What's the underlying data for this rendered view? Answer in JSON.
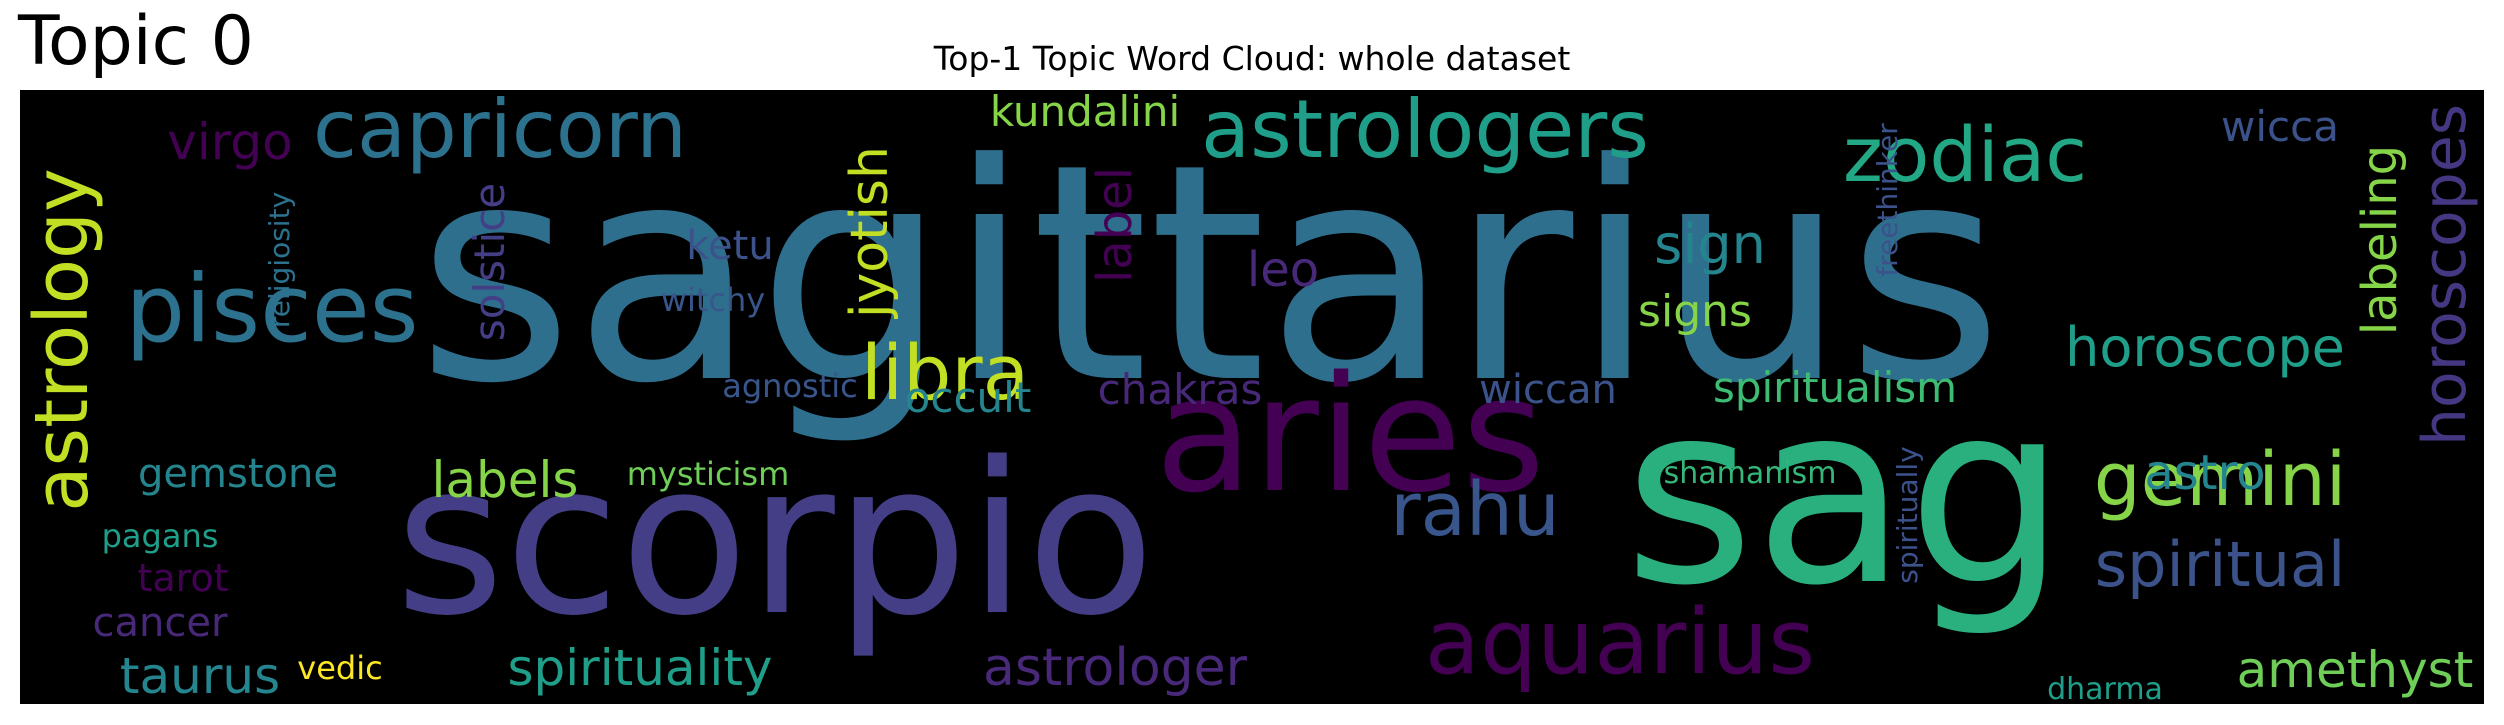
{
  "header": {
    "topic_label": "Topic 0",
    "title": "Top-1 Topic Word Cloud: whole dataset"
  },
  "colors": {
    "background": "#000000",
    "palette": [
      "#440154",
      "#482878",
      "#3e4a89",
      "#31688e",
      "#26828e",
      "#1f9e89",
      "#35b779",
      "#6ece58",
      "#b5de2b",
      "#fde725"
    ]
  },
  "words": {
    "sagittarius": "sagittarius",
    "scorpio": "scorpio",
    "sag": "sag",
    "aries": "aries",
    "astrologers": "astrologers",
    "capricorn": "capricorn",
    "pisces": "pisces",
    "astrology": "astrology",
    "aquarius": "aquarius",
    "zodiac": "zodiac",
    "libra": "libra",
    "rahu": "rahu",
    "gemini": "gemini",
    "spiritual": "spiritual",
    "horoscopes": "horoscopes",
    "horoscope": "horoscope",
    "spirituality": "spirituality",
    "astrologer": "astrologer",
    "amethyst": "amethyst",
    "jyotish": "jyotish",
    "labeling": "labeling",
    "labels": "labels",
    "taurus": "taurus",
    "kundalini": "kundalini",
    "virgo": "virgo",
    "spiritualism": "spiritualism",
    "gemstone": "gemstone",
    "occult": "occult",
    "chakras": "chakras",
    "wiccan": "wiccan",
    "sign": "sign",
    "signs": "signs",
    "label": "label",
    "solstice": "solstice",
    "leo": "leo",
    "ketu": "ketu",
    "astro": "astro",
    "wicca": "wicca",
    "cancer": "cancer",
    "tarot": "tarot",
    "mysticism": "mysticism",
    "witchy": "witchy",
    "agnostic": "agnostic",
    "religiosity": "religiosity",
    "freethinker": "freethinker",
    "spiritually": "spiritually",
    "pagans": "pagans",
    "vedic": "vedic",
    "shamanism": "shamanism",
    "dharma": "dharma"
  }
}
